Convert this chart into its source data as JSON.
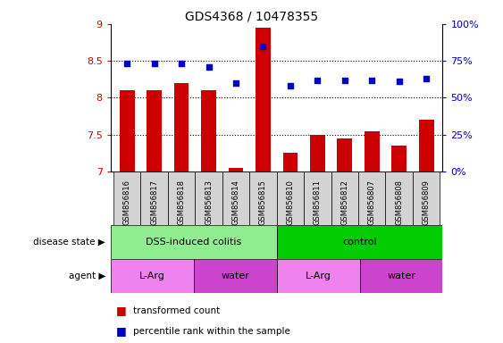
{
  "title": "GDS4368 / 10478355",
  "samples": [
    "GSM856816",
    "GSM856817",
    "GSM856818",
    "GSM856813",
    "GSM856814",
    "GSM856815",
    "GSM856810",
    "GSM856811",
    "GSM856812",
    "GSM856807",
    "GSM856808",
    "GSM856809"
  ],
  "red_values": [
    8.1,
    8.1,
    8.2,
    8.1,
    7.05,
    8.95,
    7.25,
    7.5,
    7.45,
    7.55,
    7.35,
    7.7
  ],
  "blue_values": [
    73,
    73,
    73,
    71,
    60,
    85,
    58,
    62,
    62,
    62,
    61,
    63
  ],
  "ylim_left": [
    7.0,
    9.0
  ],
  "ylim_right": [
    0,
    100
  ],
  "yticks_left": [
    7.0,
    7.5,
    8.0,
    8.5,
    9.0
  ],
  "ytick_labels_left": [
    "7",
    "7.5",
    "8",
    "8.5",
    "9"
  ],
  "yticks_right": [
    0,
    25,
    50,
    75,
    100
  ],
  "ytick_labels_right": [
    "0%",
    "25%",
    "50%",
    "75%",
    "100%"
  ],
  "bar_color": "#CC0000",
  "dot_color": "#0000CC",
  "legend_red": "transformed count",
  "legend_blue": "percentile rank within the sample",
  "left_axis_color": "#CC0000",
  "right_axis_color": "#0000CC",
  "ds_light_green": "#90EE90",
  "ds_dark_green": "#00CC00",
  "agent_light_purple": "#EE82EE",
  "agent_dark_purple": "#CC44CC",
  "tick_bg_color": "#D3D3D3"
}
